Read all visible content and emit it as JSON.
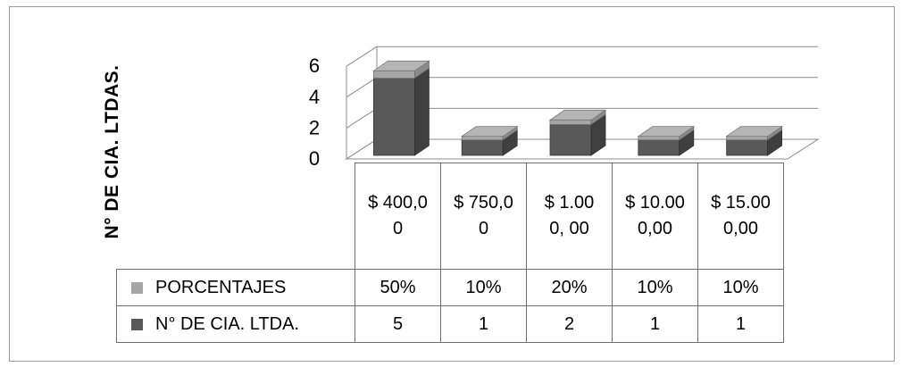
{
  "chart_data": {
    "type": "bar",
    "ylabel": "N° DE CIA. LTDAS.",
    "ylim": [
      0,
      6
    ],
    "yticks": [
      "0",
      "2",
      "4",
      "6"
    ],
    "categories": [
      "$ 400,0 0",
      "$ 750,0 0",
      "$ 1.000, 00",
      "$ 10.00 0,00",
      "$ 15.00 0,00"
    ],
    "series": [
      {
        "name": "PORCENTAJES",
        "labels": [
          "50%",
          "10%",
          "20%",
          "10%",
          "10%"
        ],
        "values": [
          0.5,
          0.1,
          0.2,
          0.1,
          0.1
        ],
        "color": "#a6a6a6"
      },
      {
        "name": "N° DE CIA. LTDA.",
        "labels": [
          "5",
          "1",
          "2",
          "1",
          "1"
        ],
        "values": [
          5,
          1,
          2,
          1,
          1
        ],
        "color": "#595959"
      }
    ],
    "grid": true,
    "legend": "data-table"
  }
}
